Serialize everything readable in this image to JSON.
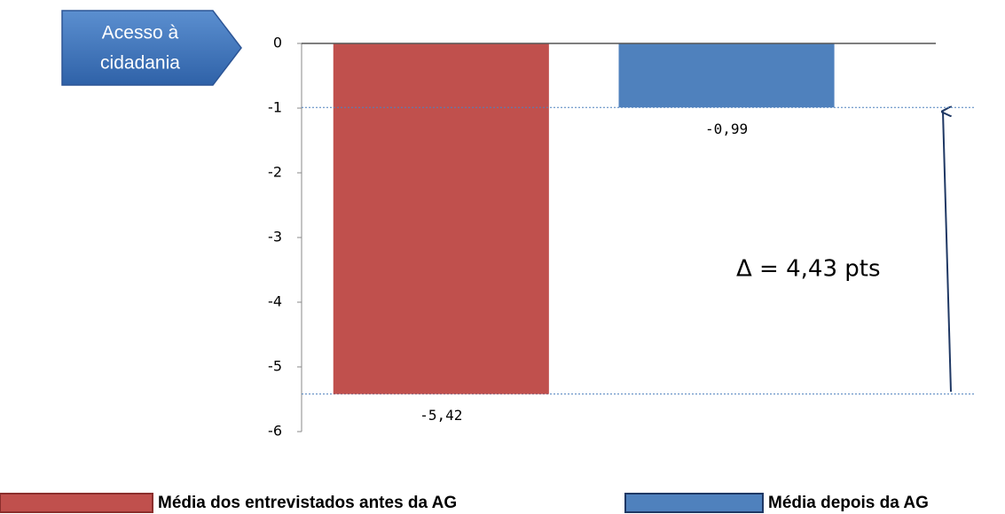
{
  "chart_data": {
    "type": "bar",
    "callout": [
      "Acesso à",
      "cidadania"
    ],
    "annotations": [
      "Δ = 4,43 pts"
    ],
    "categories": [
      null
    ],
    "series": [
      {
        "name": "Média dos entrevistados antes da AG",
        "color": "#c0504d",
        "values": [
          -5.42
        ],
        "value_labels": [
          "-5,42"
        ]
      },
      {
        "name": "Média depois da AG",
        "color": "#4f81bd",
        "values": [
          -0.99
        ],
        "value_labels": [
          "-0,99"
        ]
      }
    ],
    "ylim": [
      -6,
      0
    ],
    "yticks": [
      0,
      -1,
      -2,
      -3,
      -4,
      -5,
      -6
    ],
    "grid": false,
    "legend": "bottom"
  }
}
